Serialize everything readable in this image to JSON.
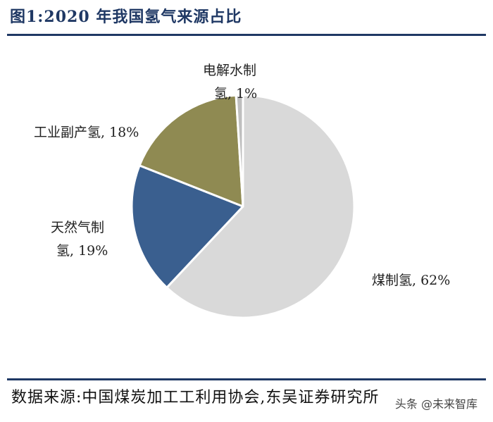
{
  "title": "图1:2020 年我国氢气来源占比",
  "source": "数据来源:中国煤炭加工工利用协会,东吴证券研究所",
  "watermark": "头条 @未来智库",
  "chart_data": {
    "type": "pie",
    "title": "图1:2020 年我国氢气来源占比",
    "slices": [
      {
        "name": "煤制氢",
        "value": 62,
        "color": "#d9d9d9",
        "label_lines": [
          "煤制氢, 62%"
        ]
      },
      {
        "name": "天然气制氢",
        "value": 19,
        "color": "#3a5f8f",
        "label_lines": [
          "天然气制",
          "氢, 19%"
        ]
      },
      {
        "name": "工业副产氢",
        "value": 18,
        "color": "#8f8a52",
        "label_lines": [
          "工业副产氢, 18%"
        ]
      },
      {
        "name": "电解水制氢",
        "value": 1,
        "color": "#bfbfbf",
        "label_lines": [
          "电解水制",
          "氢, 1%"
        ]
      }
    ]
  }
}
